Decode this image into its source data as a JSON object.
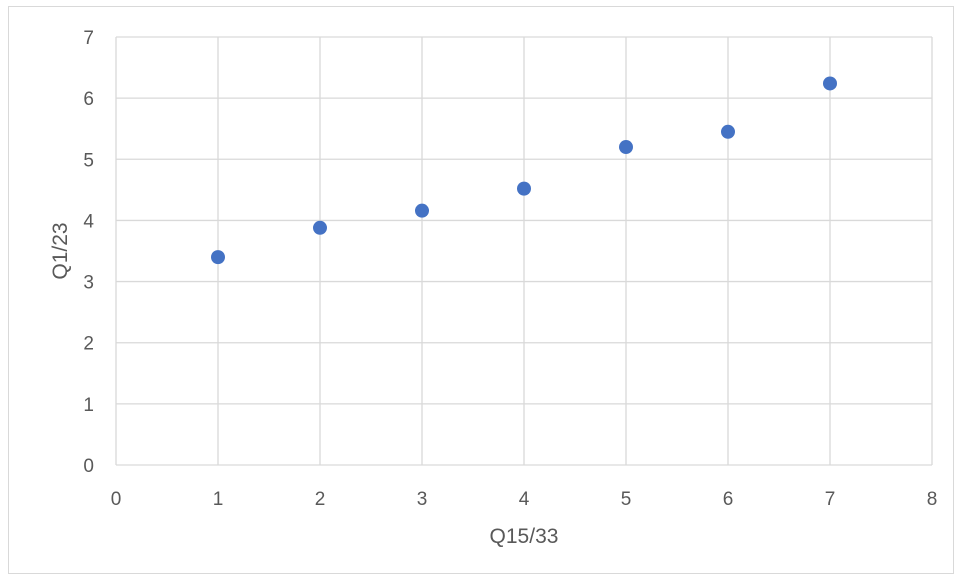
{
  "chart_data": {
    "type": "scatter",
    "title": "",
    "xlabel": "Q15/33",
    "ylabel": "Q1/23",
    "xlim": [
      0,
      8
    ],
    "ylim": [
      0,
      7
    ],
    "xticks": [
      0,
      1,
      2,
      3,
      4,
      5,
      6,
      7,
      8
    ],
    "yticks": [
      0,
      1,
      2,
      3,
      4,
      5,
      6,
      7
    ],
    "grid": true,
    "legend": "none",
    "series": [
      {
        "color": "#4472c4",
        "points": [
          {
            "x": 1,
            "y": 3.4
          },
          {
            "x": 2,
            "y": 3.88
          },
          {
            "x": 3,
            "y": 4.16
          },
          {
            "x": 4,
            "y": 4.52
          },
          {
            "x": 5,
            "y": 5.2
          },
          {
            "x": 6,
            "y": 5.45
          },
          {
            "x": 7,
            "y": 6.24
          }
        ]
      }
    ]
  }
}
